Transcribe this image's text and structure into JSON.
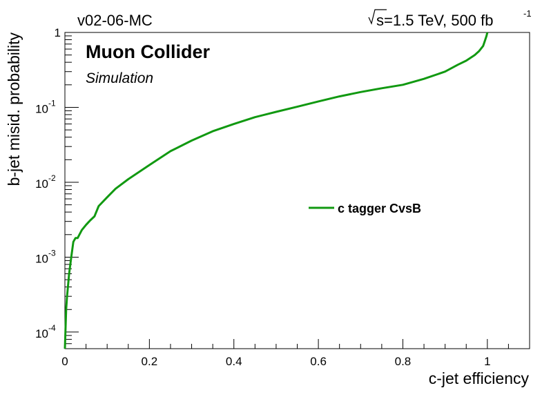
{
  "header": {
    "left_label": "v02-06-MC",
    "energy_label": "s=1.5 TeV, 500 fb",
    "energy_sup": "-1"
  },
  "labels": {
    "experiment": "Muon Collider",
    "status": "Simulation"
  },
  "colors": {
    "curve": "#119911",
    "axis": "#000000",
    "background": "#ffffff"
  },
  "chart_data": {
    "type": "line",
    "title": "",
    "xlabel": "c-jet efficiency",
    "ylabel": "b-jet misid. probability",
    "xlim": [
      0,
      1.1
    ],
    "ylim": [
      6e-05,
      1
    ],
    "yscale": "log",
    "grid": false,
    "legend_position": "center-right",
    "x_ticks": [
      "0",
      "0.2",
      "0.4",
      "0.6",
      "0.8",
      "1"
    ],
    "y_ticks": [
      {
        "base": "10",
        "exp": "-4"
      },
      {
        "base": "10",
        "exp": "-3"
      },
      {
        "base": "10",
        "exp": "-2"
      },
      {
        "base": "10",
        "exp": "-1"
      },
      {
        "base": "1",
        "exp": ""
      }
    ],
    "series": [
      {
        "name": "c tagger CvsB",
        "x": [
          0.0,
          0.003,
          0.005,
          0.01,
          0.015,
          0.02,
          0.025,
          0.03,
          0.04,
          0.05,
          0.06,
          0.07,
          0.08,
          0.1,
          0.12,
          0.15,
          0.2,
          0.25,
          0.3,
          0.35,
          0.4,
          0.45,
          0.5,
          0.55,
          0.6,
          0.65,
          0.7,
          0.75,
          0.8,
          0.85,
          0.9,
          0.93,
          0.95,
          0.97,
          0.98,
          0.99,
          0.995,
          0.998,
          1.0
        ],
        "y": [
          6e-05,
          0.0002,
          0.0003,
          0.0006,
          0.001,
          0.0016,
          0.0018,
          0.0018,
          0.0023,
          0.0027,
          0.0031,
          0.0035,
          0.0048,
          0.0063,
          0.0082,
          0.011,
          0.017,
          0.026,
          0.036,
          0.048,
          0.06,
          0.074,
          0.087,
          0.102,
          0.12,
          0.14,
          0.16,
          0.18,
          0.2,
          0.24,
          0.3,
          0.37,
          0.42,
          0.5,
          0.56,
          0.66,
          0.8,
          0.9,
          1.0
        ]
      }
    ]
  }
}
